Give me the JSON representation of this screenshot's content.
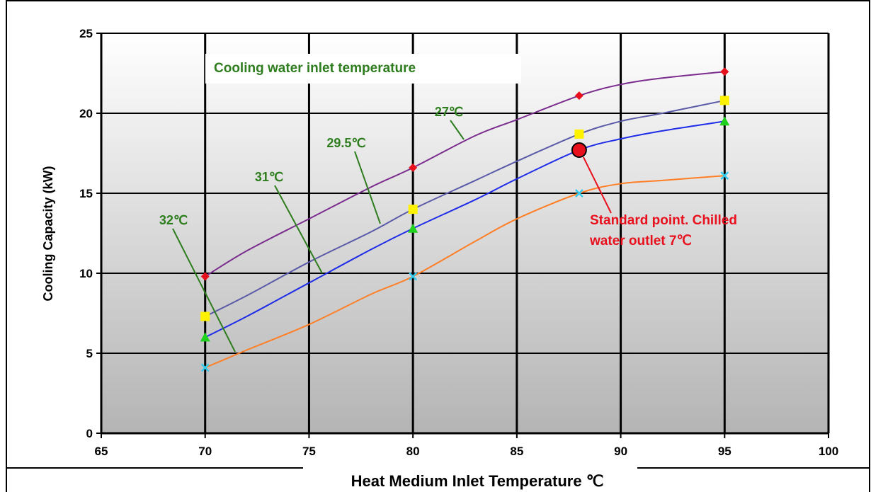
{
  "chart_data": {
    "type": "line",
    "title": "",
    "xlabel": "Heat Medium Inlet Temperature ℃",
    "ylabel": "Cooling Capacity (kW)",
    "xlim": [
      65,
      100
    ],
    "ylim": [
      0,
      25
    ],
    "x_ticks": [
      "65",
      "70",
      "75",
      "80",
      "85",
      "90",
      "95",
      "100"
    ],
    "y_ticks": [
      "0",
      "5",
      "10",
      "15",
      "20",
      "25"
    ],
    "grid": true,
    "legend_title": "Cooling water inlet  temperature",
    "series": [
      {
        "name": "27℃",
        "color": "#7B2D8E",
        "marker": "diamond",
        "marker_color": "#E8101C",
        "points": [
          [
            70,
            9.8
          ],
          [
            80,
            16.6
          ],
          [
            88,
            21.1
          ],
          [
            95,
            22.6
          ]
        ],
        "curve": [
          [
            70,
            9.8
          ],
          [
            72,
            11.4
          ],
          [
            75,
            13.4
          ],
          [
            78,
            15.4
          ],
          [
            80,
            16.6
          ],
          [
            83,
            18.6
          ],
          [
            85,
            19.6
          ],
          [
            88,
            21.1
          ],
          [
            90,
            21.8
          ],
          [
            92,
            22.2
          ],
          [
            95,
            22.6
          ]
        ]
      },
      {
        "name": "29.5℃",
        "color": "#5A5AA8",
        "marker": "square",
        "marker_color": "#FFF200",
        "points": [
          [
            70,
            7.3
          ],
          [
            80,
            14.0
          ],
          [
            88,
            18.7
          ],
          [
            95,
            20.8
          ]
        ],
        "curve": [
          [
            70,
            7.3
          ],
          [
            72,
            8.6
          ],
          [
            75,
            10.7
          ],
          [
            78,
            12.6
          ],
          [
            80,
            14.0
          ],
          [
            83,
            15.8
          ],
          [
            85,
            17.0
          ],
          [
            88,
            18.7
          ],
          [
            90,
            19.5
          ],
          [
            92,
            20.0
          ],
          [
            95,
            20.8
          ]
        ]
      },
      {
        "name": "31℃",
        "color": "#1F2CE8",
        "marker": "triangle",
        "marker_color": "#1ED21E",
        "points": [
          [
            70,
            6.0
          ],
          [
            80,
            12.8
          ],
          [
            88,
            17.7
          ],
          [
            95,
            19.5
          ]
        ],
        "curve": [
          [
            70,
            6.0
          ],
          [
            72,
            7.3
          ],
          [
            75,
            9.4
          ],
          [
            78,
            11.5
          ],
          [
            80,
            12.8
          ],
          [
            83,
            14.6
          ],
          [
            85,
            15.9
          ],
          [
            88,
            17.7
          ],
          [
            90,
            18.4
          ],
          [
            92,
            18.9
          ],
          [
            95,
            19.5
          ]
        ]
      },
      {
        "name": "32℃",
        "color": "#FF7F27",
        "marker": "x",
        "marker_color": "#33CCEE",
        "points": [
          [
            70,
            4.1
          ],
          [
            80,
            9.8
          ],
          [
            88,
            15.0
          ],
          [
            95,
            16.1
          ]
        ],
        "curve": [
          [
            70,
            4.1
          ],
          [
            72,
            5.2
          ],
          [
            75,
            6.8
          ],
          [
            78,
            8.7
          ],
          [
            80,
            9.8
          ],
          [
            83,
            12.0
          ],
          [
            85,
            13.4
          ],
          [
            88,
            15.0
          ],
          [
            90,
            15.6
          ],
          [
            92,
            15.8
          ],
          [
            95,
            16.1
          ]
        ]
      }
    ],
    "annotations": [
      {
        "text": "Standard point. Chilled",
        "text2": "water outlet 7℃",
        "x": 88,
        "y": 17.7,
        "color": "#E8101C"
      }
    ]
  }
}
